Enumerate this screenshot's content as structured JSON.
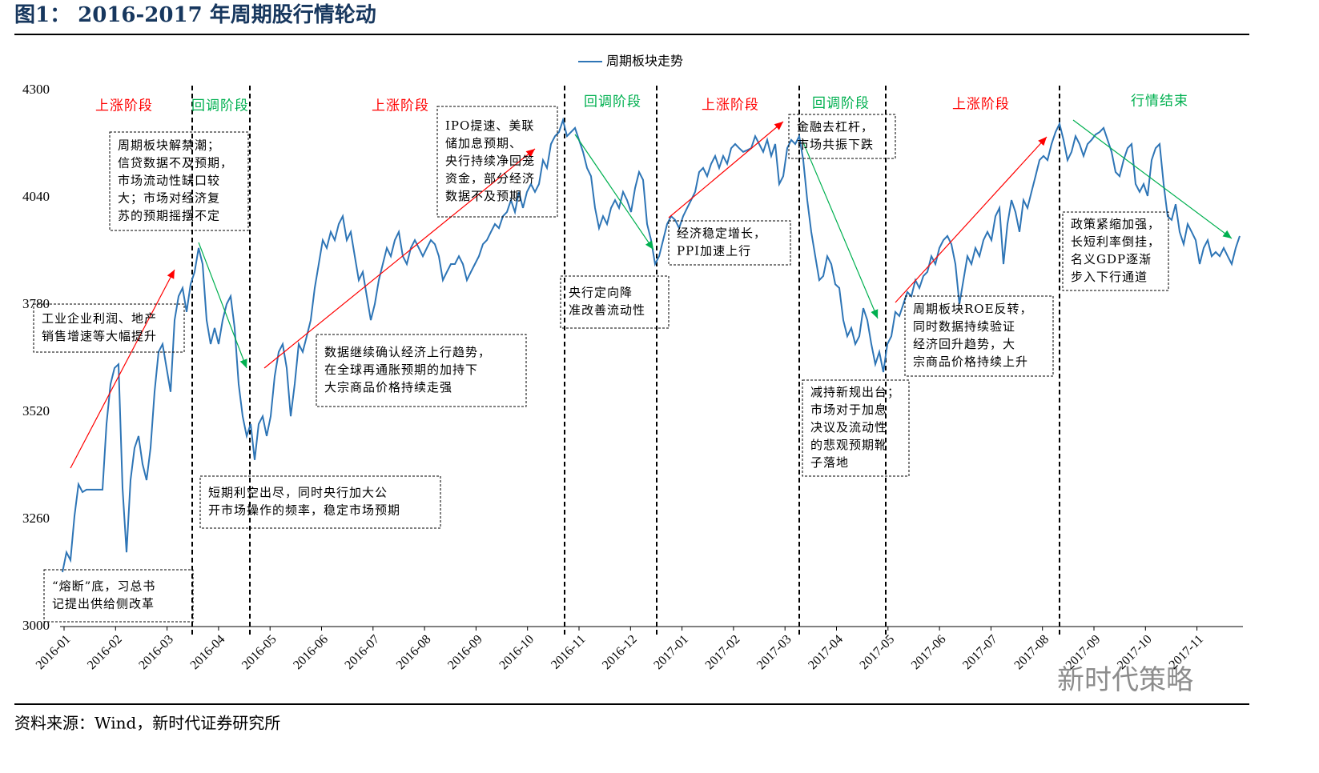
{
  "chart_data": {
    "type": "line",
    "title": "图1：  2016-2017 年周期股行情轮动",
    "source": "资料来源：Wind，新时代证券研究所",
    "watermark": "新时代策略",
    "xticks": [
      "2016-01",
      "2016-02",
      "2016-03",
      "2016-04",
      "2016-05",
      "2016-06",
      "2016-07",
      "2016-08",
      "2016-09",
      "2016-10",
      "2016-11",
      "2016-12",
      "2017-01",
      "2017-02",
      "2017-03",
      "2017-04",
      "2017-05",
      "2017-06",
      "2017-07",
      "2017-08",
      "2017-09",
      "2017-10",
      "2017-11"
    ],
    "ylim": [
      3000,
      4300
    ],
    "yticks": [
      3000,
      3260,
      3520,
      3780,
      4040,
      4300
    ],
    "series": [
      {
        "name": "周期板块走势",
        "color": "#2e75b6",
        "values": [
          3132,
          3180,
          3161,
          3268,
          3345,
          3326,
          3332,
          3332,
          3332,
          3332,
          3332,
          3491,
          3588,
          3627,
          3636,
          3336,
          3180,
          3355,
          3433,
          3462,
          3394,
          3355,
          3433,
          3569,
          3666,
          3685,
          3627,
          3569,
          3743,
          3801,
          3821,
          3763,
          3830,
          3860,
          3918,
          3879,
          3743,
          3685,
          3724,
          3685,
          3743,
          3782,
          3801,
          3724,
          3588,
          3510,
          3462,
          3491,
          3404,
          3491,
          3510,
          3462,
          3510,
          3607,
          3666,
          3685,
          3627,
          3510,
          3588,
          3685,
          3666,
          3704,
          3743,
          3821,
          3879,
          3937,
          3918,
          3957,
          3937,
          3976,
          3995,
          3937,
          3957,
          3898,
          3840,
          3860,
          3801,
          3743,
          3782,
          3840,
          3879,
          3918,
          3898,
          3937,
          3957,
          3898,
          3879,
          3918,
          3937,
          3918,
          3898,
          3918,
          3937,
          3927,
          3898,
          3840,
          3860,
          3879,
          3879,
          3898,
          3879,
          3840,
          3860,
          3879,
          3898,
          3927,
          3937,
          3957,
          3976,
          3966,
          3995,
          4005,
          4034,
          4005,
          4054,
          4015,
          4054,
          4073,
          4054,
          4073,
          4131,
          4112,
          4170,
          4189,
          4199,
          4228,
          4189,
          4199,
          4209,
          4180,
          4151,
          4112,
          4092,
          4015,
          3966,
          3995,
          3976,
          4015,
          4034,
          4015,
          4054,
          4034,
          4005,
          4063,
          4102,
          4083,
          3976,
          3937,
          3879,
          3898,
          3937,
          3976,
          3995,
          3986,
          3966,
          3995,
          4015,
          4034,
          4054,
          4102,
          4112,
          4092,
          4122,
          4141,
          4112,
          4141,
          4122,
          4160,
          4170,
          4160,
          4151,
          4155,
          4160,
          4189,
          4170,
          4151,
          4180,
          4141,
          4170,
          4073,
          4092,
          4160,
          4180,
          4170,
          4189,
          4131,
          4034,
          3957,
          3898,
          3840,
          3850,
          3898,
          3879,
          3830,
          3821,
          3743,
          3704,
          3724,
          3685,
          3704,
          3772,
          3743,
          3685,
          3636,
          3666,
          3617,
          3685,
          3704,
          3763,
          3753,
          3782,
          3811,
          3801,
          3840,
          3821,
          3850,
          3860,
          3898,
          3879,
          3918,
          3937,
          3947,
          3927,
          3879,
          3782,
          3840,
          3898,
          3879,
          3918,
          3898,
          3937,
          3957,
          3937,
          3995,
          4015,
          3879,
          3976,
          4034,
          4005,
          3957,
          4034,
          4015,
          4054,
          4092,
          4131,
          4141,
          4131,
          4170,
          4199,
          4219,
          4180,
          4131,
          4151,
          4189,
          4170,
          4141,
          4170,
          4180,
          4193,
          4199,
          4209,
          4180,
          4151,
          4102,
          4092,
          4131,
          4160,
          4170,
          4073,
          4054,
          4073,
          4044,
          4131,
          4160,
          4170,
          4073,
          3995,
          3986,
          4024,
          3957,
          3927,
          3976,
          3957,
          3937,
          3879,
          3918,
          3937,
          3898,
          3908,
          3898,
          3918,
          3898,
          3879,
          3918,
          3947
        ]
      }
    ],
    "annotations": {
      "phases": [
        "上涨阶段",
        "回调阶段",
        "上涨阶段",
        "回调阶段",
        "上涨阶段",
        "回调阶段",
        "上涨阶段",
        "行情结束"
      ],
      "boxes": [
        [
          "“熔断”底，习总书",
          "记提出供给侧改革"
        ],
        [
          "工业企业利润、地产",
          "销售增速等大幅提升"
        ],
        [
          "周期板块解禁潮；",
          "信贷数据不及预期，",
          "市场流动性缺口较",
          "大；市场对经济复",
          "苏的预期摇摆不定"
        ],
        [
          "短期利空出尽，同时央行加大公",
          "开市场操作的频率，稳定市场预期"
        ],
        [
          "数据继续确认经济上行趋势，",
          "在全球再通胀预期的加持下",
          "大宗商品价格持续走强"
        ],
        [
          "IPO提速、美联",
          "储加息预期、",
          "央行持续净回笼",
          "资金，部分经济",
          "数据不及预期"
        ],
        [
          "央行定向降",
          "准改善流动性"
        ],
        [
          "经济稳定增长，",
          "PPI加速上行"
        ],
        [
          "金融去杠杆，",
          "市场共振下跌"
        ],
        [
          "减持新规出台；",
          "市场对于加息",
          "决议及流动性",
          "的悲观预期靴",
          "子落地"
        ],
        [
          "周期板块ROE反转，",
          "同时数据持续验证",
          "经济回升趋势，大",
          "宗商品价格持续上升"
        ],
        [
          "政策紧缩加强，",
          "长短利率倒挂，",
          "名义GDP逐渐",
          "步入下行通道"
        ]
      ]
    }
  }
}
